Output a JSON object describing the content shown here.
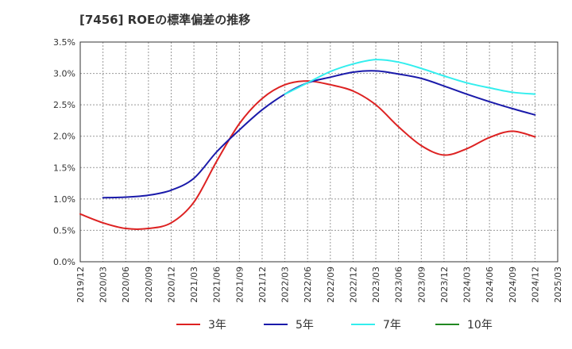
{
  "chart_data": {
    "type": "line",
    "title": "[7456]  ROEの標準偏差の推移",
    "xlabel": "",
    "ylabel": "",
    "ylim": [
      0,
      3.5
    ],
    "y_ticks": [
      0,
      0.5,
      1.0,
      1.5,
      2.0,
      2.5,
      3.0,
      3.5
    ],
    "y_tick_labels": [
      "0.0%",
      "0.5%",
      "1.0%",
      "1.5%",
      "2.0%",
      "2.5%",
      "3.0%",
      "3.5%"
    ],
    "x_tick_labels": [
      "2019/12",
      "2020/03",
      "2020/06",
      "2020/09",
      "2020/12",
      "2021/03",
      "2021/06",
      "2021/09",
      "2021/12",
      "2022/03",
      "2022/06",
      "2022/09",
      "2022/12",
      "2023/03",
      "2023/06",
      "2023/09",
      "2023/12",
      "2024/03",
      "2024/06",
      "2024/09",
      "2024/12",
      "2025/03"
    ],
    "grid": true,
    "legend_position": "bottom",
    "series": [
      {
        "name": "3年",
        "color": "#dd2222",
        "values": [
          0.76,
          0.62,
          0.53,
          0.53,
          0.62,
          0.95,
          1.6,
          2.2,
          2.6,
          2.82,
          2.88,
          2.82,
          2.72,
          2.5,
          2.15,
          1.85,
          1.7,
          1.8,
          1.98,
          2.08,
          1.99,
          null
        ]
      },
      {
        "name": "5年",
        "color": "#1a1aaa",
        "values": [
          null,
          1.02,
          1.03,
          1.06,
          1.14,
          1.33,
          1.75,
          2.1,
          2.42,
          2.67,
          2.85,
          2.94,
          3.02,
          3.04,
          2.99,
          2.92,
          2.8,
          2.67,
          2.55,
          2.44,
          2.34,
          null
        ]
      },
      {
        "name": "7年",
        "color": "#33eeee",
        "values": [
          null,
          null,
          null,
          null,
          null,
          null,
          null,
          null,
          null,
          2.67,
          2.85,
          3.03,
          3.15,
          3.22,
          3.18,
          3.08,
          2.96,
          2.85,
          2.77,
          2.7,
          2.67,
          null
        ]
      },
      {
        "name": "10年",
        "color": "#228822",
        "values": [
          null,
          null,
          null,
          null,
          null,
          null,
          null,
          null,
          null,
          null,
          null,
          null,
          null,
          null,
          null,
          null,
          null,
          null,
          null,
          null,
          null,
          null
        ]
      }
    ]
  }
}
